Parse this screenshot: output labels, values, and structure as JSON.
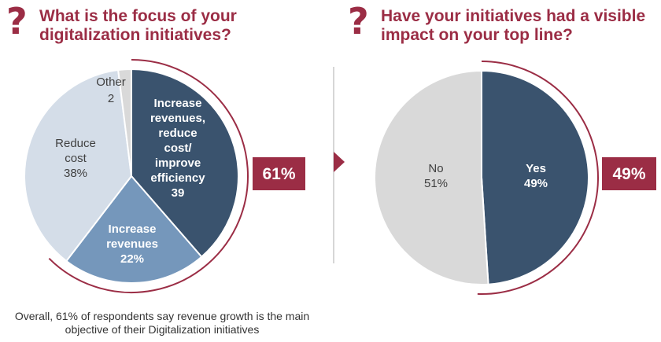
{
  "colors": {
    "accent": "#9b2d45",
    "dark_blue": "#3a536e",
    "mid_blue": "#7597bb",
    "light_blue": "#d4dde8",
    "light_gray": "#d9d9d9",
    "divider": "#c9c9c9"
  },
  "left": {
    "icon": "question-mark-icon",
    "title_line1": "What is the focus of your",
    "title_line2": "digitalization initiatives?",
    "callout": "61%"
  },
  "right": {
    "icon": "question-mark-icon",
    "title_line1": "Have your initiatives had a visible",
    "title_line2": "impact on your top line?",
    "callout": "49%"
  },
  "footnote": {
    "line1": "Overall, 61% of respondents say revenue growth is the main",
    "line2": "objective of their Digitalization  initiatives"
  },
  "chart_data": [
    {
      "type": "pie",
      "slices": [
        {
          "label_lines": [
            "Increase",
            "revenues,",
            "reduce",
            "cost/",
            "improve",
            "efficiency"
          ],
          "value_text": "39",
          "value": 39,
          "color": "#3a536e",
          "text_color": "#ffffff",
          "bold": true
        },
        {
          "label_lines": [
            "Increase",
            "revenues"
          ],
          "value_text": "22%",
          "value": 22,
          "color": "#7597bb",
          "text_color": "#ffffff",
          "bold": true
        },
        {
          "label_lines": [
            "Reduce",
            "cost"
          ],
          "value_text": "38%",
          "value": 38,
          "color": "#d4dde8",
          "text_color": "#404040",
          "bold": false
        },
        {
          "label_lines": [
            "Other"
          ],
          "value_text": "2",
          "value": 2,
          "color": "#d9d9d9",
          "text_color": "#404040",
          "bold": false
        }
      ]
    },
    {
      "type": "pie",
      "slices": [
        {
          "label_lines": [
            "Yes"
          ],
          "value_text": "49%",
          "value": 49,
          "color": "#3a536e",
          "text_color": "#ffffff",
          "bold": true
        },
        {
          "label_lines": [
            "No"
          ],
          "value_text": "51%",
          "value": 51,
          "color": "#d9d9d9",
          "text_color": "#404040",
          "bold": false
        }
      ]
    }
  ]
}
